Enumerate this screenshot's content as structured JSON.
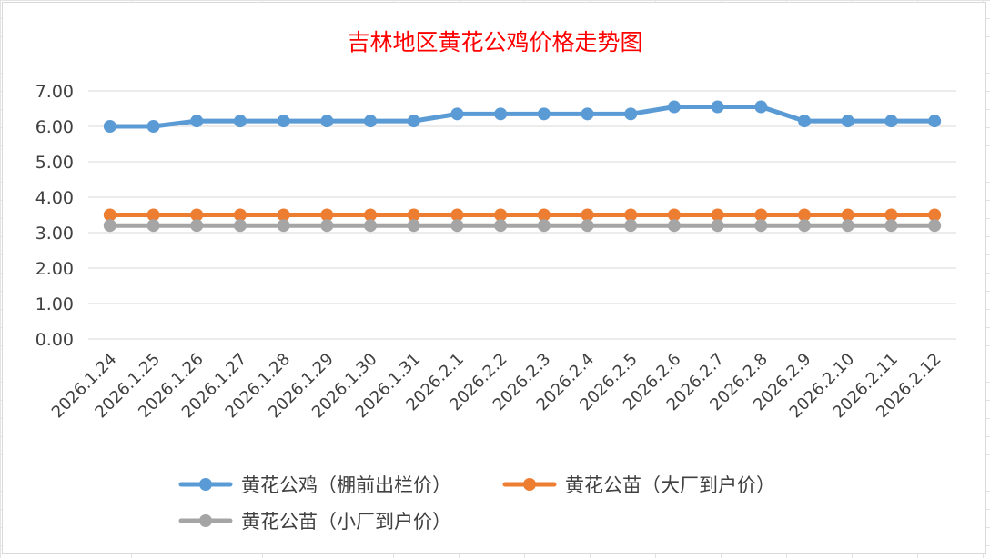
{
  "chart_data": {
    "type": "line",
    "title": "吉林地区黄花公鸡价格走势图",
    "xlabel": "",
    "ylabel": "",
    "ylim": [
      0,
      7
    ],
    "yticks": [
      "0.00",
      "1.00",
      "2.00",
      "3.00",
      "4.00",
      "5.00",
      "6.00",
      "7.00"
    ],
    "grid": true,
    "legend_position": "bottom",
    "categories": [
      "2026.1.24",
      "2026.1.25",
      "2026.1.26",
      "2026.1.27",
      "2026.1.28",
      "2026.1.29",
      "2026.1.30",
      "2026.1.31",
      "2026.2.1",
      "2026.2.2",
      "2026.2.3",
      "2026.2.4",
      "2026.2.5",
      "2026.2.6",
      "2026.2.7",
      "2026.2.8",
      "2026.2.9",
      "2026.2.10",
      "2026.2.11",
      "2026.2.12"
    ],
    "series": [
      {
        "name": "黄花公鸡（棚前出栏价）",
        "color": "#5b9bd5",
        "values": [
          6.0,
          6.0,
          6.15,
          6.15,
          6.15,
          6.15,
          6.15,
          6.15,
          6.35,
          6.35,
          6.35,
          6.35,
          6.35,
          6.55,
          6.55,
          6.55,
          6.15,
          6.15,
          6.15,
          6.15
        ]
      },
      {
        "name": "黄花公苗（大厂到户价）",
        "color": "#ed7d31",
        "values": [
          3.5,
          3.5,
          3.5,
          3.5,
          3.5,
          3.5,
          3.5,
          3.5,
          3.5,
          3.5,
          3.5,
          3.5,
          3.5,
          3.5,
          3.5,
          3.5,
          3.5,
          3.5,
          3.5,
          3.5
        ]
      },
      {
        "name": "黄花公苗（小厂到户价）",
        "color": "#a5a5a5",
        "values": [
          3.2,
          3.2,
          3.2,
          3.2,
          3.2,
          3.2,
          3.2,
          3.2,
          3.2,
          3.2,
          3.2,
          3.2,
          3.2,
          3.2,
          3.2,
          3.2,
          3.2,
          3.2,
          3.2,
          3.2
        ]
      }
    ]
  }
}
